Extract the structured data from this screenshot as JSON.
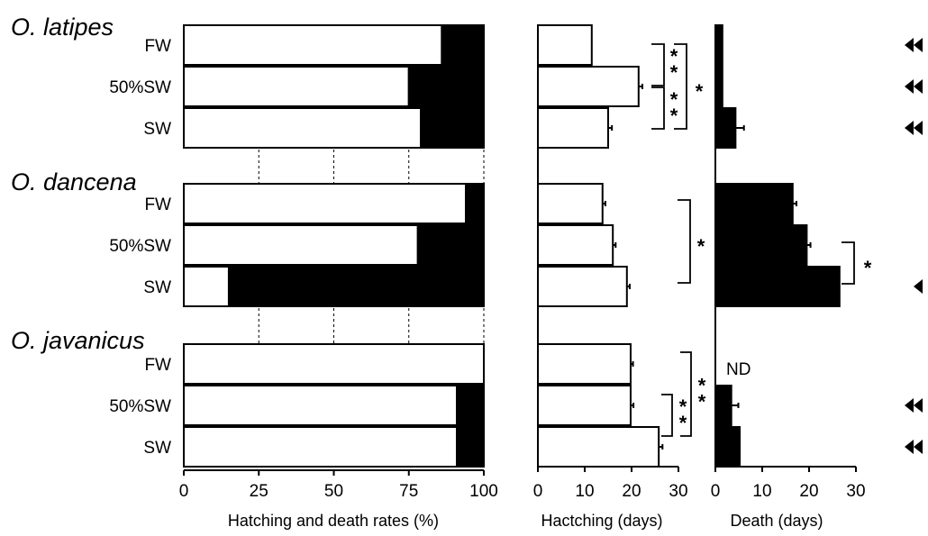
{
  "chart_data": [
    {
      "type": "bar",
      "stacked": true,
      "orientation": "horizontal",
      "xlabel": "Hatching and death rates (%)",
      "xlim": [
        0,
        100
      ],
      "xticks": [
        "0",
        "25",
        "50",
        "75",
        "100"
      ],
      "grid": "dashed vertical lines at 25, 50, 75 between species groups",
      "groups": [
        {
          "species": "O. latipes",
          "rows": [
            {
              "condition": "FW",
              "hatching": 86,
              "death": 14
            },
            {
              "condition": "50%SW",
              "hatching": 75,
              "death": 25
            },
            {
              "condition": "SW",
              "hatching": 79,
              "death": 21
            }
          ]
        },
        {
          "species": "O. dancena",
          "rows": [
            {
              "condition": "FW",
              "hatching": 94,
              "death": 6
            },
            {
              "condition": "50%SW",
              "hatching": 78,
              "death": 22
            },
            {
              "condition": "SW",
              "hatching": 15,
              "death": 85
            }
          ]
        },
        {
          "species": "O. javanicus",
          "rows": [
            {
              "condition": "FW",
              "hatching": 100,
              "death": 0
            },
            {
              "condition": "50%SW",
              "hatching": 91,
              "death": 9
            },
            {
              "condition": "SW",
              "hatching": 91,
              "death": 9
            }
          ]
        }
      ],
      "colors": {
        "hatching": "#ffffff",
        "death": "#000000"
      }
    },
    {
      "type": "bar",
      "orientation": "horizontal",
      "xlabel": "Hactching (days)",
      "xlim": [
        0,
        30
      ],
      "xticks": [
        "0",
        "10",
        "20",
        "30"
      ],
      "values": {
        "O. latipes": {
          "FW": [
            11.5,
            0
          ],
          "50%SW": [
            21.5,
            0.8
          ],
          "SW": [
            15,
            0.8
          ]
        },
        "O. dancena": {
          "FW": [
            13.8,
            0.6
          ],
          "50%SW": [
            16,
            0.6
          ],
          "SW": [
            19,
            0.6
          ]
        },
        "O. javanicus": {
          "FW": [
            19.8,
            0.5
          ],
          "50%SW": [
            19.8,
            0.6
          ],
          "SW": [
            25.8,
            0.8
          ]
        }
      },
      "significance": [
        {
          "species": "O. latipes",
          "between": [
            "FW",
            "50%SW"
          ],
          "mark": "**"
        },
        {
          "species": "O. latipes",
          "between": [
            "50%SW",
            "SW"
          ],
          "mark": "**"
        },
        {
          "species": "O. latipes",
          "between": [
            "FW",
            "SW"
          ],
          "mark": "*"
        },
        {
          "species": "O. dancena",
          "between": [
            "FW",
            "SW"
          ],
          "mark": "*"
        },
        {
          "species": "O. javanicus",
          "between": [
            "50%SW",
            "SW"
          ],
          "mark": "**"
        },
        {
          "species": "O. javanicus",
          "between": [
            "FW",
            "SW"
          ],
          "mark": "**"
        }
      ]
    },
    {
      "type": "bar",
      "orientation": "horizontal",
      "xlabel": "Death (days)",
      "xlim": [
        0,
        30
      ],
      "xticks": [
        "0",
        "10",
        "20",
        "30"
      ],
      "values": {
        "O. latipes": {
          "FW": [
            1.5,
            0
          ],
          "50%SW": [
            1.5,
            0
          ],
          "SW": [
            4.3,
            1.8
          ]
        },
        "O. dancena": {
          "FW": [
            16.5,
            0.8
          ],
          "50%SW": [
            19.5,
            0.8
          ],
          "SW": [
            26.5,
            0
          ]
        },
        "O. javanicus": {
          "FW": null,
          "50%SW": [
            3.4,
            1.5
          ],
          "SW": [
            5.2,
            0
          ]
        }
      },
      "nd_label": "ND",
      "nd_at": {
        "species": "O. javanicus",
        "condition": "FW"
      },
      "significance": [
        {
          "species": "O. dancena",
          "between": [
            "50%SW",
            "SW"
          ],
          "mark": "*"
        }
      ],
      "markers": {
        "O. latipes": {
          "FW": 2,
          "50%SW": 2,
          "SW": 2
        },
        "O. dancena": {
          "SW": 1
        },
        "O. javanicus": {
          "50%SW": 2,
          "SW": 2
        }
      },
      "marker_shape": "left-pointing filled triangle"
    }
  ]
}
